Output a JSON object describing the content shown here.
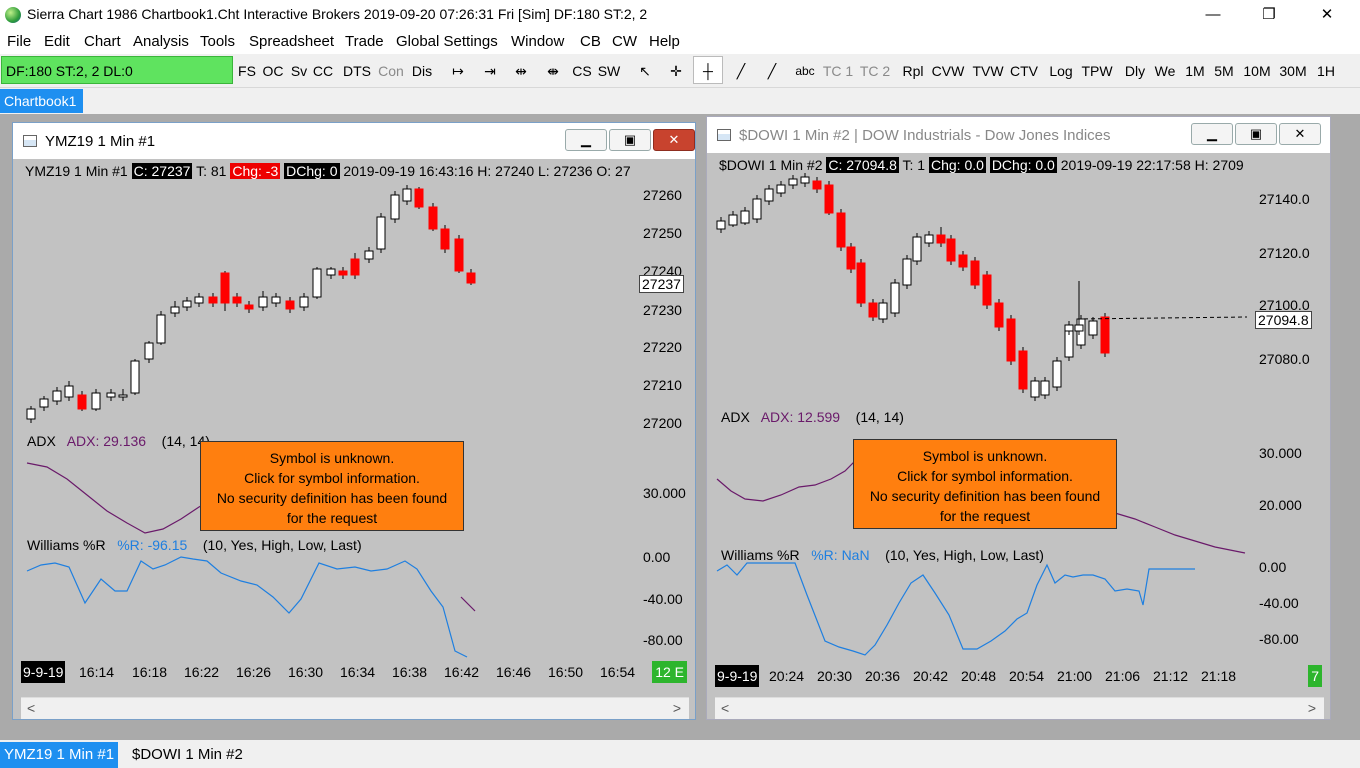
{
  "app": {
    "title": "Sierra Chart 1986 Chartbook1.Cht  Interactive Brokers 2019-09-20  07:26:31 Fri [Sim]  DF:180  ST:2, 2",
    "minimize": "—",
    "restore": "❐",
    "close": "✕"
  },
  "menu": [
    "File",
    "Edit",
    "Chart",
    "Analysis",
    "Tools",
    "Spreadsheet",
    "Trade",
    "Global Settings",
    "Window",
    "CB",
    "CW",
    "Help"
  ],
  "toolbar": {
    "status": "DF:180  ST:2, 2  DL:0",
    "buttons": [
      "FS",
      "OC",
      "Sv",
      "CC",
      "DTS",
      "Con",
      "Dis",
      "↦",
      "⇥",
      "⇹",
      "⇼",
      "CS",
      "SW",
      "↖",
      "✛",
      "┼",
      "╱",
      "╱",
      "abc",
      "TC 1",
      "TC 2",
      "Rpl",
      "CVW",
      "TVW",
      "CTV",
      "Log",
      "TPW",
      "Dly",
      "We",
      "1M",
      "5M",
      "10M",
      "30M",
      "1H"
    ]
  },
  "chartbook_tab": "Chartbook1",
  "chart1": {
    "title": "YMZ19  1 Min   #1",
    "info_symbol": "YMZ19  1 Min   #1",
    "info_c": "C: 27237",
    "info_t": "T: 81",
    "info_chg": "Chg: -3",
    "info_dchg": "DChg: 0",
    "info_rest": "2019-09-19 16:43:16 H: 27240 L: 27236 O: 27",
    "y_labels": [
      "27260",
      "27250",
      "27240",
      "27230",
      "27220",
      "27210",
      "27200"
    ],
    "last_price": "27237",
    "adx_name": "ADX",
    "adx_value": "ADX: 29.136",
    "adx_params": "(14, 14)",
    "adx_axis": "30.000",
    "wr_name": "Williams %R",
    "wr_value": "%R: -96.15",
    "wr_params": "(10, Yes, High, Low, Last)",
    "wr_axis": [
      "0.00",
      "-40.00",
      "-80.00"
    ],
    "x_date": "9-9-19",
    "x_labels": [
      "16:14",
      "16:18",
      "16:22",
      "16:26",
      "16:30",
      "16:34",
      "16:38",
      "16:42",
      "16:46",
      "16:50",
      "16:54"
    ],
    "x_tag": "12 E",
    "message": [
      "Symbol is unknown.",
      "Click for symbol information.",
      "No security definition has been found",
      "for the request"
    ]
  },
  "chart2": {
    "title": "$DOWI  1 Min   #2 | DOW Industrials - Dow Jones Indices",
    "info_symbol": "$DOWI  1 Min   #2",
    "info_c": "C: 27094.8",
    "info_t": "T: 1",
    "info_chg": "Chg: 0.0",
    "info_dchg": "DChg: 0.0",
    "info_rest": "2019-09-19 22:17:58 H: 2709",
    "y_labels": [
      "27140.0",
      "27120.0",
      "27100.0",
      "27080.0"
    ],
    "last_price": "27094.8",
    "adx_name": "ADX",
    "adx_value": "ADX: 12.599",
    "adx_params": "(14, 14)",
    "adx_axis": [
      "30.000",
      "20.000"
    ],
    "wr_name": "Williams %R",
    "wr_value": "%R: NaN",
    "wr_params": "(10, Yes, High, Low, Last)",
    "wr_axis": [
      "0.00",
      "-40.00",
      "-80.00"
    ],
    "x_date": "9-9-19",
    "x_labels": [
      "20:24",
      "20:30",
      "20:36",
      "20:42",
      "20:48",
      "20:54",
      "21:00",
      "21:06",
      "21:12",
      "21:18"
    ],
    "x_tag": "7",
    "message": [
      "Symbol is unknown.",
      "Click for symbol information.",
      "No security definition has been found",
      "for the request"
    ]
  },
  "bottom_tabs": [
    "YMZ19  1 Min   #1",
    "$DOWI  1 Min   #2"
  ],
  "colors": {
    "up": "#ffffff",
    "down": "#ff0000",
    "adx": "#6a1a6a",
    "wr": "#1e7fe0",
    "panel": "#c2c2c2"
  }
}
